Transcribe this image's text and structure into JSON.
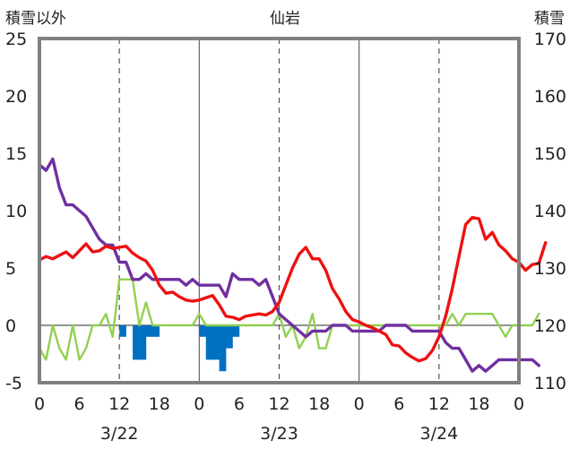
{
  "chart_data": {
    "type": "line",
    "title": "仙岩",
    "left_axis_title": "積雪以外",
    "right_axis_title": "積雪",
    "left_ylim": [
      -5,
      25
    ],
    "left_yticks": [
      "25",
      "20",
      "15",
      "10",
      "5",
      "0",
      "-5"
    ],
    "right_ylim": [
      110,
      170
    ],
    "right_yticks": [
      "170",
      "160",
      "150",
      "140",
      "130",
      "120",
      "110"
    ],
    "x_tick_labels": [
      "0",
      "6",
      "12",
      "18",
      "0",
      "6",
      "12",
      "18",
      "0",
      "6",
      "12",
      "18",
      "0"
    ],
    "date_labels": [
      "3/22",
      "3/23",
      "3/24"
    ],
    "grid": true,
    "colors": {
      "temperature": "#ee1111",
      "snow_depth": "#7030a0",
      "wind": "#92d050",
      "precip_bar": "#0070c0",
      "frame": "#808080"
    },
    "series": [
      {
        "key": "temperature",
        "axis": "left",
        "values": [
          5.7,
          6.0,
          5.8,
          6.1,
          6.4,
          5.9,
          6.5,
          7.1,
          6.4,
          6.5,
          6.9,
          6.7,
          6.8,
          6.9,
          6.3,
          5.9,
          5.6,
          4.8,
          3.5,
          2.8,
          2.9,
          2.5,
          2.2,
          2.1,
          2.2,
          2.4,
          2.6,
          1.8,
          0.8,
          0.7,
          0.5,
          0.8,
          0.9,
          1.0,
          0.9,
          1.2,
          2.0,
          3.5,
          5.0,
          6.2,
          6.8,
          5.8,
          5.8,
          4.8,
          3.2,
          2.3,
          1.2,
          0.5,
          0.3,
          0.0,
          -0.2,
          -0.5,
          -0.8,
          -1.7,
          -1.8,
          -2.4,
          -2.8,
          -3.1,
          -2.9,
          -2.2,
          -1.0,
          0.8,
          3.2,
          6.0,
          8.8,
          9.4,
          9.3,
          7.5,
          8.1,
          7.0,
          6.5,
          5.8,
          5.5,
          4.8,
          5.3,
          5.4,
          7.2
        ]
      },
      {
        "key": "snow_depth",
        "axis": "right",
        "values": [
          148,
          147,
          149,
          144,
          141,
          141,
          140,
          139,
          137,
          135,
          134,
          134,
          131,
          131,
          128,
          128,
          129,
          128,
          128,
          128,
          128,
          128,
          127,
          128,
          127,
          127,
          127,
          127,
          125,
          129,
          128,
          128,
          128,
          127,
          128,
          125,
          122,
          121,
          120,
          119,
          118,
          119,
          119,
          119,
          120,
          120,
          120,
          119,
          119,
          119,
          119,
          119,
          120,
          120,
          120,
          120,
          119,
          119,
          119,
          119,
          119,
          117,
          116,
          116,
          114,
          112,
          113,
          112,
          113,
          114,
          114,
          114,
          114,
          114,
          114,
          113
        ]
      },
      {
        "key": "wind",
        "axis": "left",
        "values": [
          -2,
          -3,
          0,
          -2,
          -3,
          0,
          -3,
          -2,
          0,
          0,
          1,
          -1,
          4,
          4,
          4,
          0,
          2,
          0,
          0,
          0,
          0,
          0,
          0,
          0,
          1,
          0,
          0,
          0,
          0,
          0,
          0,
          0,
          0,
          0,
          0,
          0,
          1,
          -1,
          0,
          -2,
          -1,
          1,
          -2,
          -2,
          0,
          0,
          0,
          0,
          0,
          0,
          0,
          0,
          0,
          0,
          0,
          0,
          0,
          0,
          0,
          0,
          0,
          0,
          1,
          0,
          1,
          1,
          1,
          1,
          1,
          0,
          -1,
          0,
          0,
          0,
          0,
          1
        ]
      },
      {
        "key": "precipitation",
        "axis": "left",
        "type": "bar",
        "bars": [
          [
            12,
            -1
          ],
          [
            14,
            -3
          ],
          [
            15,
            -3
          ],
          [
            16,
            -1
          ],
          [
            17,
            -1
          ],
          [
            24,
            -1
          ],
          [
            25,
            -3
          ],
          [
            26,
            -3
          ],
          [
            27,
            -4
          ],
          [
            28,
            -2
          ],
          [
            29,
            -1
          ]
        ]
      }
    ]
  }
}
